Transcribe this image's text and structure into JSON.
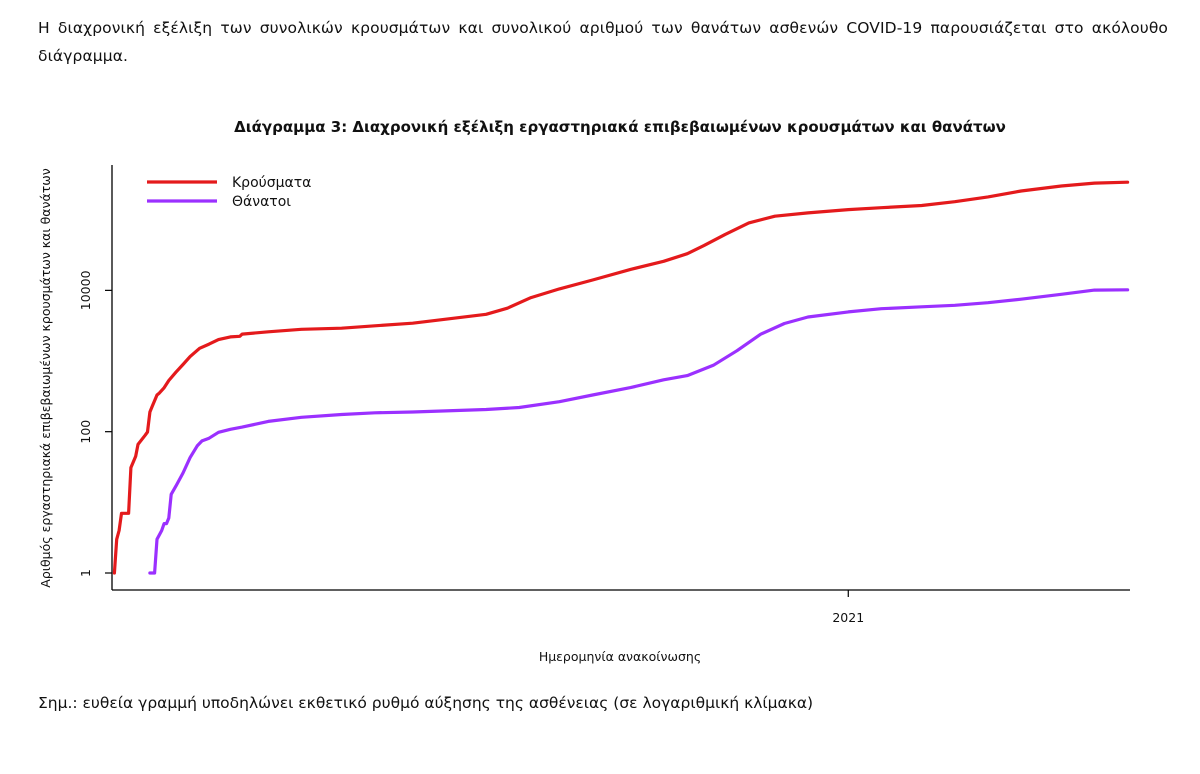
{
  "text": {
    "intro": "Η διαχρονική εξέλιξη των συνολικών κρουσμάτων και συνολικού αριθμού των θανάτων ασθενών COVID-19 παρουσιάζεται στο ακόλουθο διάγραμμα.",
    "note": "Σημ.: ευθεία γραμμή υποδηλώνει εκθετικό ρυθμό αύξησης της ασθένειας (σε λογαριθμική κλίμακα)"
  },
  "chart_data": {
    "type": "line",
    "title": "Διάγραμμα 3: Διαχρονική εξέλιξη εργαστηριακά επιβεβαιωμένων κρουσμάτων και θανάτων",
    "xlabel": "Ημερομηνία ανακοίνωσης",
    "ylabel": "Αριθμός εργαστηριακά επιβεβαιωμένων κρουσμάτων και θανάτων",
    "x_axis": {
      "type": "date",
      "range": [
        "2020-02-25",
        "2021-04-30"
      ],
      "ticks": [
        {
          "date": "2021-01-01",
          "label": "2021"
        }
      ]
    },
    "y_axis": {
      "scale": "log10",
      "range": [
        1,
        700000
      ],
      "ticks": [
        {
          "value": 1,
          "label": "1"
        },
        {
          "value": 100,
          "label": "100"
        },
        {
          "value": 10000,
          "label": "10000"
        }
      ]
    },
    "grid": false,
    "legend_position": "top-left",
    "series": [
      {
        "name": "Κρούσματα",
        "color": "#e41a1c",
        "points": [
          [
            "2020-02-26",
            1
          ],
          [
            "2020-02-27",
            3
          ],
          [
            "2020-02-28",
            4
          ],
          [
            "2020-02-29",
            7
          ],
          [
            "2020-03-02",
            7
          ],
          [
            "2020-03-03",
            7
          ],
          [
            "2020-03-04",
            31
          ],
          [
            "2020-03-06",
            45
          ],
          [
            "2020-03-07",
            66
          ],
          [
            "2020-03-08",
            73
          ],
          [
            "2020-03-10",
            89
          ],
          [
            "2020-03-11",
            99
          ],
          [
            "2020-03-12",
            190
          ],
          [
            "2020-03-13",
            228
          ],
          [
            "2020-03-15",
            331
          ],
          [
            "2020-03-16",
            352
          ],
          [
            "2020-03-18",
            418
          ],
          [
            "2020-03-20",
            530
          ],
          [
            "2020-03-23",
            695
          ],
          [
            "2020-03-26",
            892
          ],
          [
            "2020-03-29",
            1156
          ],
          [
            "2020-04-02",
            1514
          ],
          [
            "2020-04-06",
            1735
          ],
          [
            "2020-04-10",
            2011
          ],
          [
            "2020-04-15",
            2192
          ],
          [
            "2020-04-19",
            2235
          ],
          [
            "2020-04-20",
            2401
          ],
          [
            "2020-05-01",
            2591
          ],
          [
            "2020-05-15",
            2810
          ],
          [
            "2020-06-01",
            2918
          ],
          [
            "2020-06-15",
            3148
          ],
          [
            "2020-07-01",
            3432
          ],
          [
            "2020-07-15",
            3910
          ],
          [
            "2020-08-01",
            4587
          ],
          [
            "2020-08-10",
            5600
          ],
          [
            "2020-08-20",
            7900
          ],
          [
            "2020-09-01",
            10500
          ],
          [
            "2020-09-15",
            14000
          ],
          [
            "2020-10-01",
            19800
          ],
          [
            "2020-10-15",
            25800
          ],
          [
            "2020-10-25",
            33000
          ],
          [
            "2020-11-01",
            43000
          ],
          [
            "2020-11-10",
            62000
          ],
          [
            "2020-11-20",
            90000
          ],
          [
            "2020-12-01",
            112000
          ],
          [
            "2020-12-15",
            125000
          ],
          [
            "2021-01-01",
            139000
          ],
          [
            "2021-01-15",
            148000
          ],
          [
            "2021-02-01",
            159000
          ],
          [
            "2021-02-15",
            180000
          ],
          [
            "2021-03-01",
            210000
          ],
          [
            "2021-03-15",
            255000
          ],
          [
            "2021-04-01",
            300000
          ],
          [
            "2021-04-15",
            330000
          ],
          [
            "2021-04-29",
            340000
          ]
        ]
      },
      {
        "name": "Θάνατοι",
        "color": "#9b30ff",
        "points": [
          [
            "2020-03-12",
            1
          ],
          [
            "2020-03-14",
            1
          ],
          [
            "2020-03-15",
            3
          ],
          [
            "2020-03-17",
            4
          ],
          [
            "2020-03-18",
            5
          ],
          [
            "2020-03-19",
            5
          ],
          [
            "2020-03-20",
            6
          ],
          [
            "2020-03-21",
            13
          ],
          [
            "2020-03-23",
            17
          ],
          [
            "2020-03-26",
            26
          ],
          [
            "2020-03-29",
            43
          ],
          [
            "2020-04-01",
            63
          ],
          [
            "2020-04-03",
            74
          ],
          [
            "2020-04-06",
            81
          ],
          [
            "2020-04-10",
            98
          ],
          [
            "2020-04-15",
            108
          ],
          [
            "2020-04-20",
            116
          ],
          [
            "2020-05-01",
            140
          ],
          [
            "2020-05-15",
            160
          ],
          [
            "2020-06-01",
            175
          ],
          [
            "2020-06-15",
            185
          ],
          [
            "2020-07-01",
            190
          ],
          [
            "2020-07-15",
            197
          ],
          [
            "2020-08-01",
            206
          ],
          [
            "2020-08-15",
            220
          ],
          [
            "2020-09-01",
            266
          ],
          [
            "2020-09-15",
            330
          ],
          [
            "2020-10-01",
            420
          ],
          [
            "2020-10-15",
            543
          ],
          [
            "2020-10-25",
            621
          ],
          [
            "2020-11-05",
            870
          ],
          [
            "2020-11-15",
            1400
          ],
          [
            "2020-11-25",
            2400
          ],
          [
            "2020-12-05",
            3400
          ],
          [
            "2020-12-15",
            4200
          ],
          [
            "2021-01-01",
            4950
          ],
          [
            "2021-01-15",
            5500
          ],
          [
            "2021-02-01",
            5850
          ],
          [
            "2021-02-15",
            6150
          ],
          [
            "2021-03-01",
            6700
          ],
          [
            "2021-03-15",
            7500
          ],
          [
            "2021-04-01",
            8800
          ],
          [
            "2021-04-15",
            10100
          ],
          [
            "2021-04-29",
            10200
          ]
        ]
      }
    ]
  }
}
